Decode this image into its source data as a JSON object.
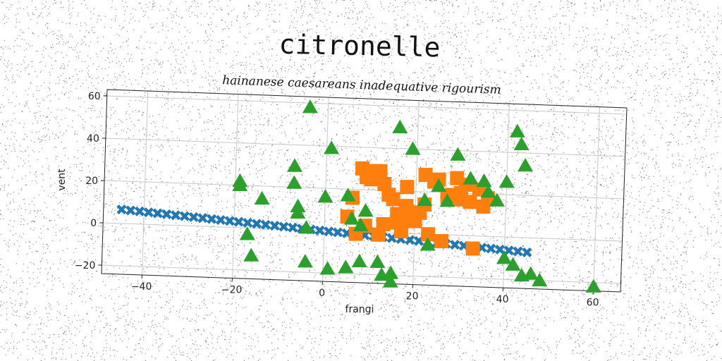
{
  "chart_data": {
    "type": "scatter",
    "title": "citronelle",
    "subtitle": "hainanese caesareans inadequative rigourism",
    "xlabel": "frangi",
    "ylabel": "vent",
    "xlim": [
      -49,
      66
    ],
    "ylim": [
      -24,
      63
    ],
    "xticks": [
      -40,
      -20,
      0,
      20,
      40,
      60
    ],
    "yticks": [
      -20,
      0,
      20,
      40,
      60
    ],
    "xtick_labels": [
      "−40",
      "−20",
      "0",
      "20",
      "40",
      "60"
    ],
    "ytick_labels": [
      "−20",
      "0",
      "20",
      "40",
      "60"
    ],
    "grid": true,
    "series": [
      {
        "marker": "x",
        "color": "#1f77b4",
        "x": [
          -45,
          -43,
          -41,
          -39,
          -37,
          -35,
          -33,
          -31,
          -29,
          -27,
          -25,
          -23,
          -21,
          -19,
          -17,
          -15,
          -13,
          -11,
          -9,
          -7,
          -5,
          -3,
          -1,
          1,
          3,
          5,
          7,
          9,
          11,
          13,
          15,
          17,
          19,
          21,
          23,
          25,
          27,
          29,
          31,
          33,
          35,
          37,
          39,
          41,
          43,
          45
        ],
        "y": [
          6.6,
          6.3,
          6.0,
          5.7,
          5.4,
          5.1,
          4.8,
          4.5,
          4.2,
          3.9,
          3.6,
          3.3,
          3.0,
          2.7,
          2.4,
          2.1,
          1.8,
          1.5,
          1.2,
          0.9,
          0.6,
          0.3,
          0.0,
          -0.3,
          -0.6,
          -0.9,
          -1.2,
          -1.5,
          -1.8,
          -2.1,
          -2.4,
          -2.7,
          -3.0,
          -3.3,
          -3.6,
          -3.9,
          -4.2,
          -4.5,
          -4.8,
          -5.1,
          -5.4,
          -5.7,
          -6.0,
          -6.3,
          -6.6,
          -6.9
        ]
      },
      {
        "marker": "s",
        "color": "#ff7f0e",
        "x": [
          5,
          6,
          7,
          8,
          9,
          10,
          11,
          12,
          13,
          14,
          15,
          16,
          17,
          18,
          19,
          20,
          21,
          22,
          23,
          24,
          25,
          27,
          28,
          29,
          30,
          31,
          32,
          33,
          34,
          35,
          36,
          9,
          13,
          16,
          19,
          22,
          26,
          30,
          12,
          18
        ],
        "y": [
          7,
          16,
          -1,
          30,
          26,
          25,
          29,
          29,
          23,
          18,
          16,
          5,
          1,
          22,
          10,
          6,
          10,
          14,
          0,
          25,
          26,
          18,
          19,
          27,
          20,
          24,
          16,
          -6,
          22,
          14,
          18,
          3,
          4,
          9,
          7,
          28,
          -3,
          17,
          -1,
          13
        ]
      },
      {
        "marker": "^",
        "color": "#2ca02c",
        "x": [
          -19,
          -19,
          -14,
          -16,
          -7,
          -7,
          -6,
          -6,
          -4,
          -4,
          0,
          1,
          5,
          6,
          8,
          9,
          12,
          15,
          16,
          19,
          22,
          23,
          25,
          27,
          29,
          32,
          35,
          36,
          38,
          40,
          42,
          43,
          44,
          44,
          46,
          48,
          60,
          -17,
          -4,
          1,
          5,
          8,
          13,
          15,
          40,
          42
        ],
        "y": [
          22,
          20,
          14,
          -13,
          30,
          22,
          11,
          8,
          58,
          1,
          16,
          39,
          17,
          6,
          -14,
          10,
          -14,
          -19,
          50,
          40,
          16,
          -5,
          23,
          16,
          38,
          27,
          26,
          21,
          17,
          -10,
          50,
          44,
          34,
          -18,
          -17,
          -20,
          -22,
          -3,
          -15,
          -18,
          -17,
          3,
          -20,
          -23,
          26,
          -13
        ]
      }
    ]
  }
}
